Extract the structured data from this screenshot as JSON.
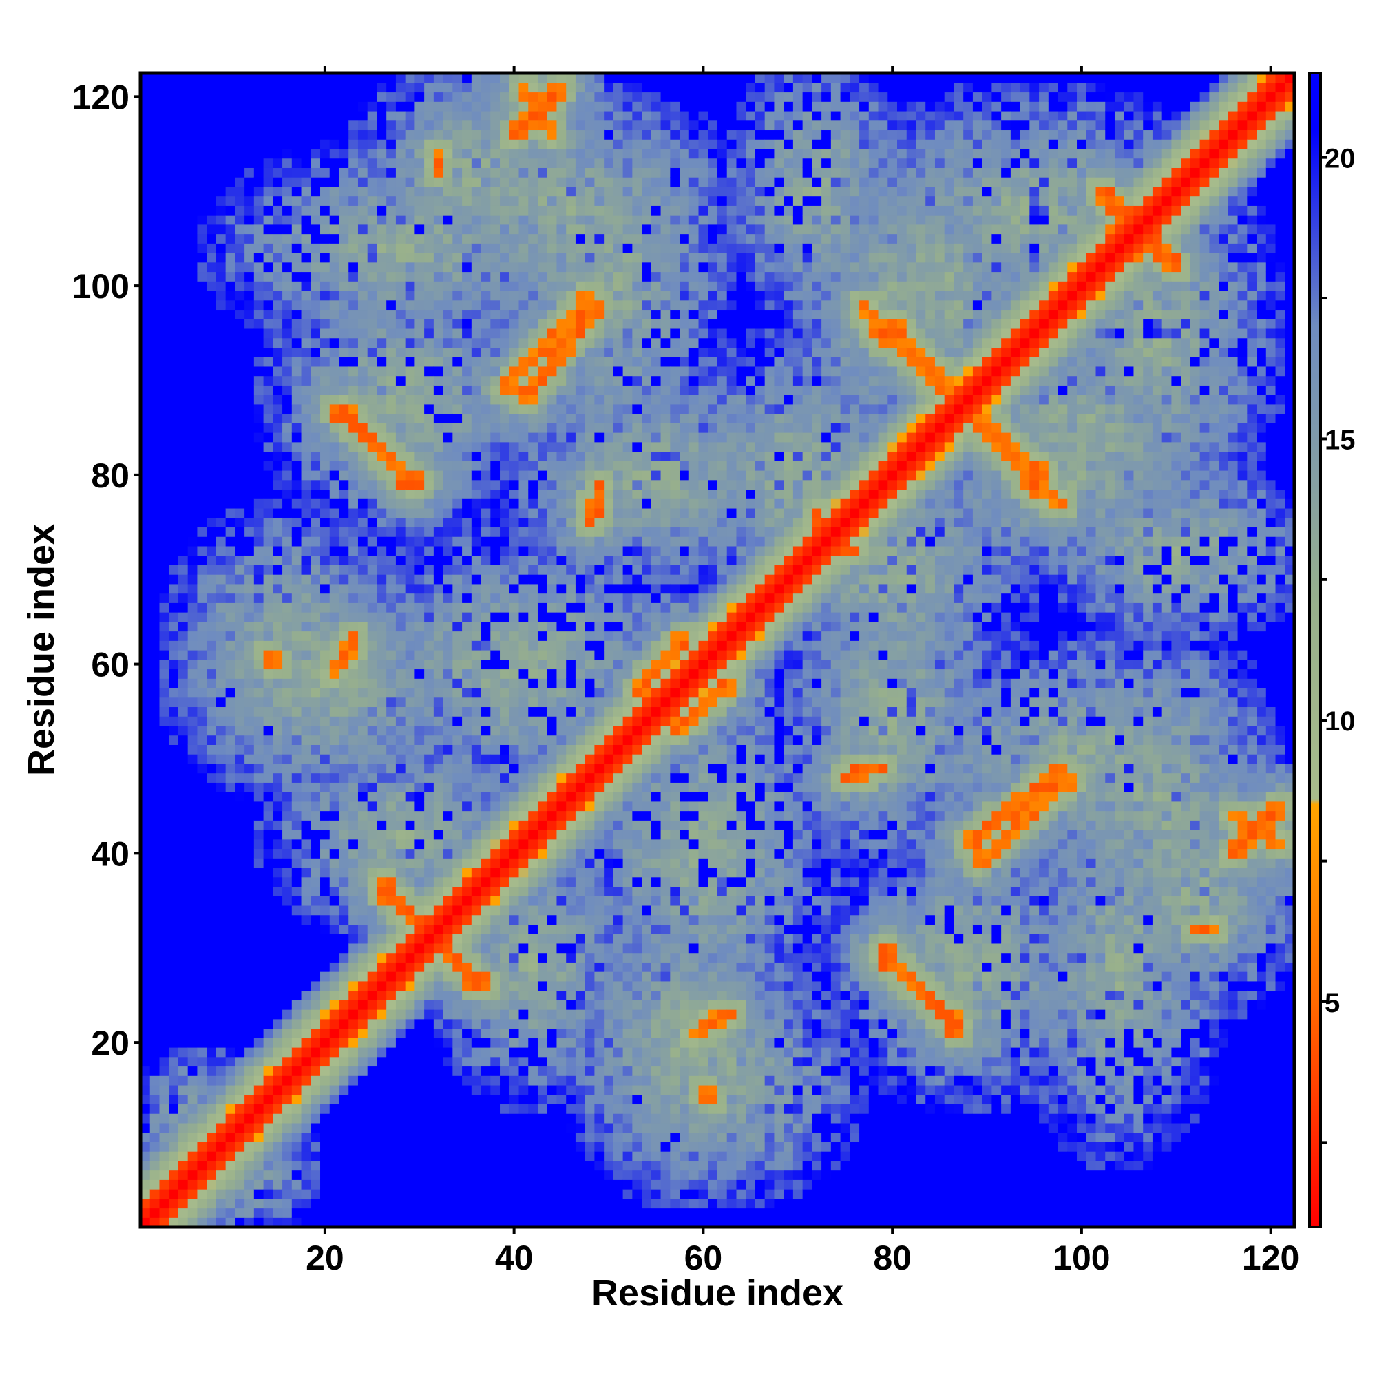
{
  "chart_data": {
    "type": "heatmap",
    "title": "",
    "xlabel": "Residue index",
    "ylabel": "Residue index",
    "n_residues": 122,
    "xlim": [
      1,
      122
    ],
    "ylim": [
      1,
      122
    ],
    "x_ticks": [
      20,
      40,
      60,
      80,
      100,
      120
    ],
    "y_ticks": [
      20,
      40,
      60,
      80,
      100,
      120
    ],
    "colorbar": {
      "ticks": [
        5,
        10,
        15,
        20
      ],
      "range": [
        1,
        21.5
      ],
      "stops": [
        {
          "value": 1.0,
          "color": "#ff0000"
        },
        {
          "value": 5.0,
          "color": "#ff6a00"
        },
        {
          "value": 8.5,
          "color": "#ffa500"
        },
        {
          "value": 8.6,
          "color": "#a8bc8c"
        },
        {
          "value": 12.0,
          "color": "#98b08c"
        },
        {
          "value": 17.0,
          "color": "#6f8cc0"
        },
        {
          "value": 20.5,
          "color": "#0000ff"
        },
        {
          "value": 21.5,
          "color": "#0000ff"
        }
      ]
    },
    "background_value": 21,
    "diagonal_contacts": {
      "core_width": 2,
      "halo_width": 7
    },
    "contact_arms": [
      {
        "name": "helix-1/2",
        "from": [
          22,
          87
        ],
        "to": [
          29,
          79
        ]
      },
      {
        "name": "helix-1/3",
        "from": [
          41,
          121
        ],
        "to": [
          44,
          116
        ]
      },
      {
        "name": "helix-2/3",
        "from": [
          39,
          89
        ],
        "to": [
          48,
          99
        ]
      },
      {
        "name": "helix-4/5",
        "from": [
          80,
          96
        ],
        "to": [
          96,
          78
        ]
      },
      {
        "name": "helix-4/5b",
        "from": [
          77,
          98
        ],
        "to": [
          79,
          94
        ]
      },
      {
        "name": "helix-6/7",
        "from": [
          26,
          37
        ],
        "to": [
          36,
          26
        ]
      },
      {
        "name": "helix-8/9",
        "from": [
          79,
          30
        ],
        "to": [
          87,
          21
        ]
      },
      {
        "name": "helix-9/10",
        "from": [
          88,
          41
        ],
        "to": [
          98,
          49
        ]
      },
      {
        "name": "helix-10/11",
        "from": [
          116,
          40
        ],
        "to": [
          121,
          45
        ]
      },
      {
        "name": "helix-12/13",
        "from": [
          112,
          32
        ],
        "to": [
          114,
          32
        ]
      },
      {
        "name": "helix-14/15",
        "from": [
          21,
          59
        ],
        "to": [
          23,
          63
        ]
      },
      {
        "name": "helix-16",
        "from": [
          53,
          57
        ],
        "to": [
          58,
          63
        ]
      },
      {
        "name": "helix-17",
        "from": [
          60,
          22
        ],
        "to": [
          62,
          23
        ]
      },
      {
        "name": "helix-18",
        "from": [
          60,
          15
        ],
        "to": [
          61,
          14
        ]
      },
      {
        "name": "helix-19",
        "from": [
          76,
          49
        ],
        "to": [
          79,
          49
        ]
      },
      {
        "name": "helix-20",
        "from": [
          48,
          77
        ],
        "to": [
          48,
          75
        ]
      },
      {
        "name": "helix-21",
        "from": [
          72,
          76
        ],
        "to": [
          75,
          72
        ]
      },
      {
        "name": "helix-22",
        "from": [
          102,
          110
        ],
        "to": [
          108,
          104
        ]
      },
      {
        "name": "helix-23",
        "from": [
          105,
          103
        ],
        "to": [
          115,
          114
        ]
      }
    ],
    "mid_regions": [
      {
        "cx": 28,
        "cy": 104,
        "rx": 22,
        "ry": 12
      },
      {
        "cx": 55,
        "cy": 80,
        "rx": 18,
        "ry": 12
      },
      {
        "cx": 45,
        "cy": 108,
        "rx": 22,
        "ry": 14
      },
      {
        "cx": 85,
        "cy": 100,
        "rx": 14,
        "ry": 20
      },
      {
        "cx": 108,
        "cy": 95,
        "rx": 14,
        "ry": 22
      },
      {
        "cx": 20,
        "cy": 58,
        "rx": 18,
        "ry": 14
      },
      {
        "cx": 28,
        "cy": 42,
        "rx": 16,
        "ry": 12
      },
      {
        "cx": 60,
        "cy": 40,
        "rx": 16,
        "ry": 22
      },
      {
        "cx": 62,
        "cy": 16,
        "rx": 16,
        "ry": 14
      },
      {
        "cx": 88,
        "cy": 28,
        "rx": 16,
        "ry": 16
      },
      {
        "cx": 100,
        "cy": 50,
        "rx": 22,
        "ry": 14
      },
      {
        "cx": 112,
        "cy": 36,
        "rx": 14,
        "ry": 14
      },
      {
        "cx": 80,
        "cy": 70,
        "rx": 16,
        "ry": 16
      },
      {
        "cx": 98,
        "cy": 80,
        "rx": 18,
        "ry": 12
      },
      {
        "cx": 110,
        "cy": 72,
        "rx": 16,
        "ry": 10
      },
      {
        "cx": 8,
        "cy": 10,
        "rx": 10,
        "ry": 10
      }
    ]
  }
}
